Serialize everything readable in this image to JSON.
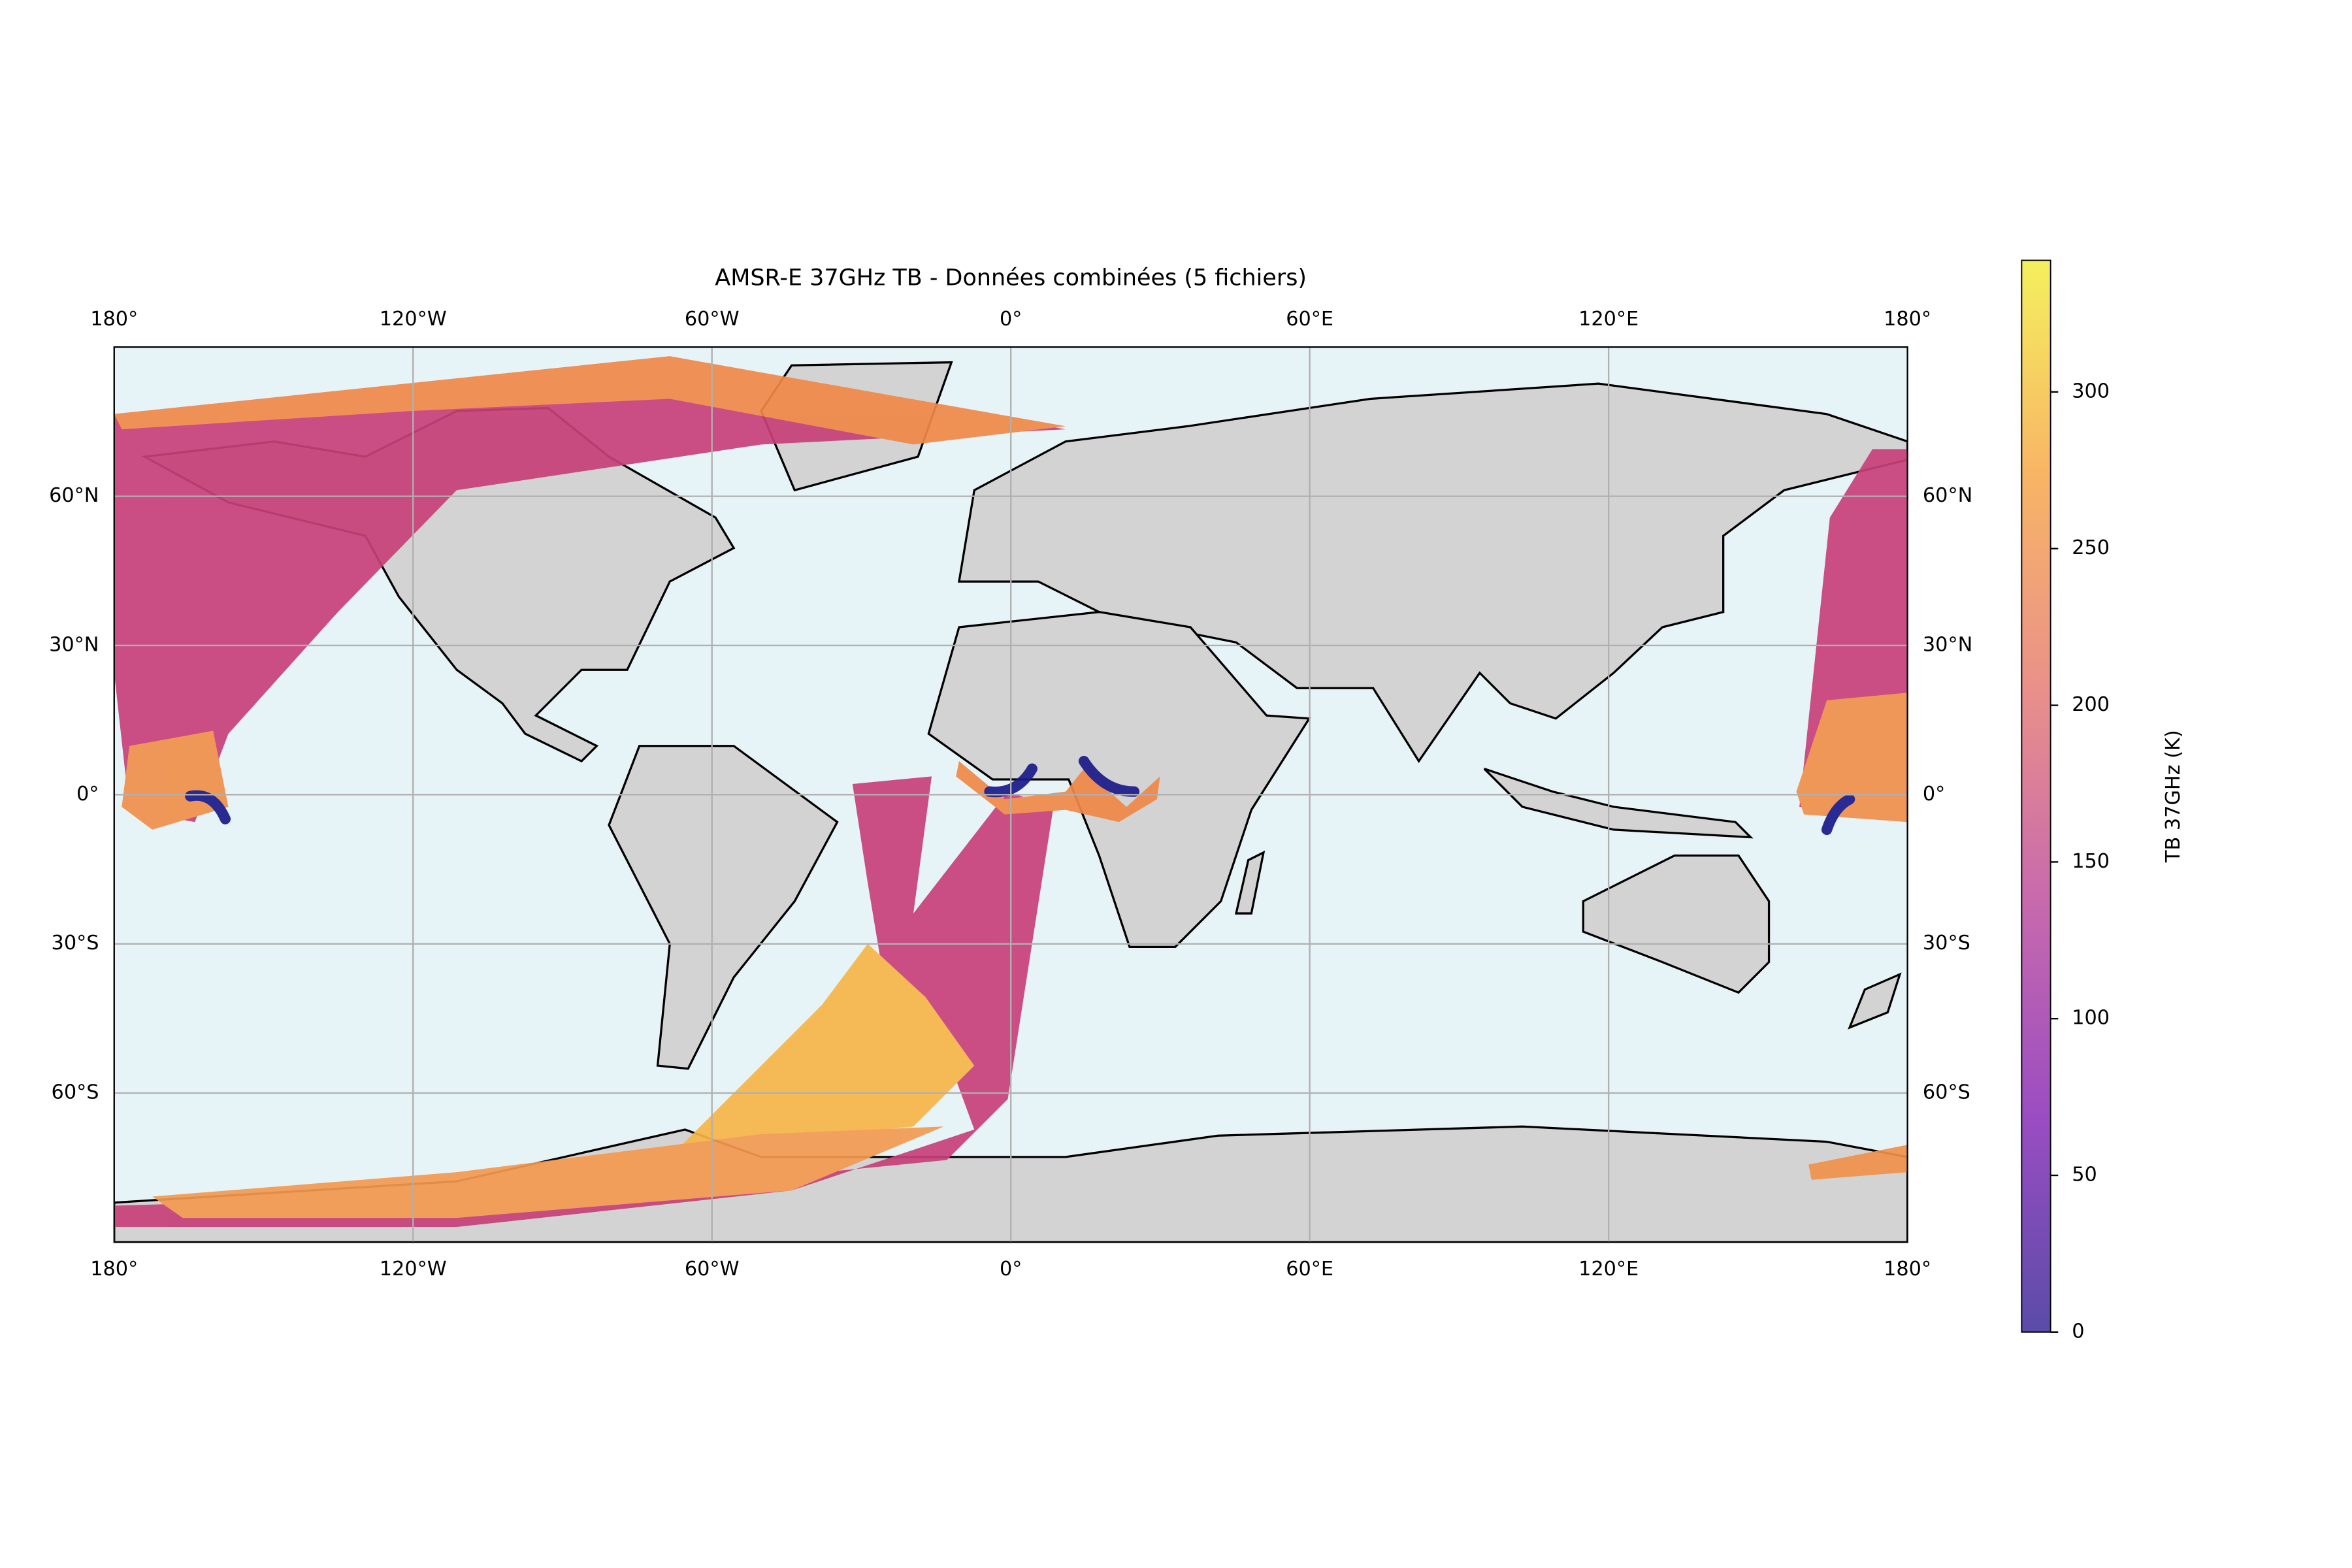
{
  "map": {
    "title": "AMSR-E 37GHz TB - Données combinées (5 fichiers)",
    "xlim": [
      -180,
      180
    ],
    "ylim": [
      -90,
      90
    ],
    "xticks": [
      {
        "value": -180,
        "label": "180°"
      },
      {
        "value": -120,
        "label": "120°W"
      },
      {
        "value": -60,
        "label": "60°W"
      },
      {
        "value": 0,
        "label": "0°"
      },
      {
        "value": 60,
        "label": "60°E"
      },
      {
        "value": 120,
        "label": "120°E"
      },
      {
        "value": 180,
        "label": "180°"
      }
    ],
    "yticks": [
      {
        "value": 60,
        "label": "60°N"
      },
      {
        "value": 30,
        "label": "30°N"
      },
      {
        "value": 0,
        "label": "0°"
      },
      {
        "value": -30,
        "label": "30°S"
      },
      {
        "value": -60,
        "label": "60°S"
      }
    ],
    "grid": true,
    "colorbar": {
      "label": "TB 37GHz (K)",
      "lim": [
        0,
        342
      ],
      "ticks": [
        0,
        50,
        100,
        150,
        200,
        250,
        300
      ],
      "colors": [
        "#5a4ca8",
        "#9a4dc2",
        "#c769ad",
        "#e9908a",
        "#f8b565",
        "#f4f05e"
      ]
    }
  }
}
